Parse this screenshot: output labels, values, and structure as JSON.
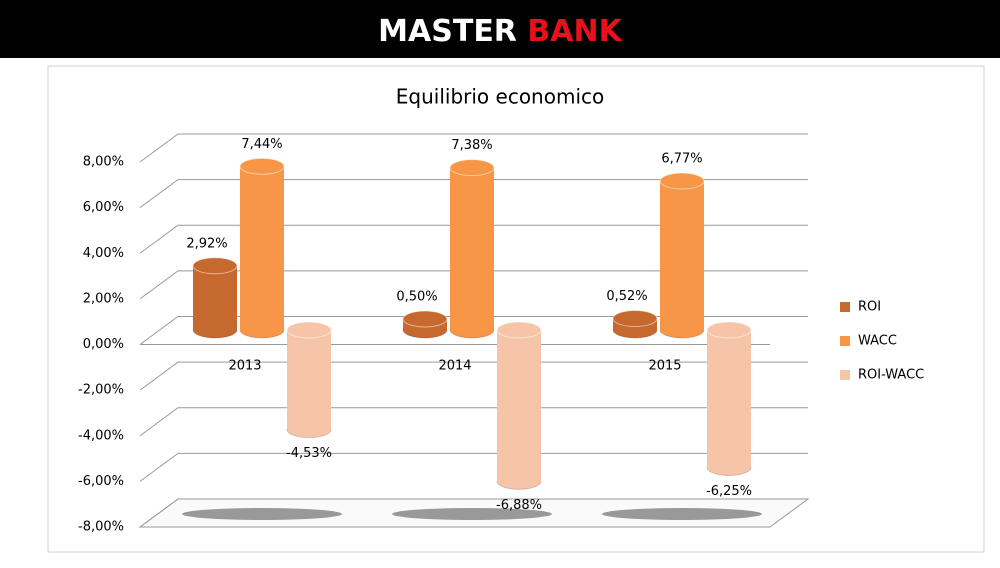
{
  "header": {
    "title_first": "MASTER",
    "title_second": "BANK"
  },
  "chart_data": {
    "type": "bar3d",
    "title": "Equilibrio economico",
    "categories": [
      "2013",
      "2014",
      "2015"
    ],
    "series": [
      {
        "name": "ROI",
        "color": "#c5692f",
        "values": [
          2.92,
          0.5,
          0.52
        ],
        "value_labels": [
          "2,92%",
          "0,50%",
          "0,52%"
        ]
      },
      {
        "name": "WACC",
        "color": "#f79646",
        "values": [
          7.44,
          7.38,
          6.77
        ],
        "value_labels": [
          "7,44%",
          "7,38%",
          "6,77%"
        ]
      },
      {
        "name": "ROI-WACC",
        "color": "#f6c4a6",
        "values": [
          -4.53,
          -6.88,
          -6.25
        ],
        "value_labels": [
          "-4,53%",
          "-6,88%",
          "-6,25%"
        ]
      }
    ],
    "ylim": [
      -8,
      8
    ],
    "yticks": [
      {
        "value": -8,
        "label": "-8,00%"
      },
      {
        "value": -6,
        "label": "-6,00%"
      },
      {
        "value": -4,
        "label": "-4,00%"
      },
      {
        "value": -2,
        "label": "-2,00%"
      },
      {
        "value": 0,
        "label": "0,00%"
      },
      {
        "value": 2,
        "label": "2,00%"
      },
      {
        "value": 4,
        "label": "4,00%"
      },
      {
        "value": 6,
        "label": "6,00%"
      },
      {
        "value": 8,
        "label": "8,00%"
      }
    ],
    "grid": true,
    "legend": "right"
  }
}
